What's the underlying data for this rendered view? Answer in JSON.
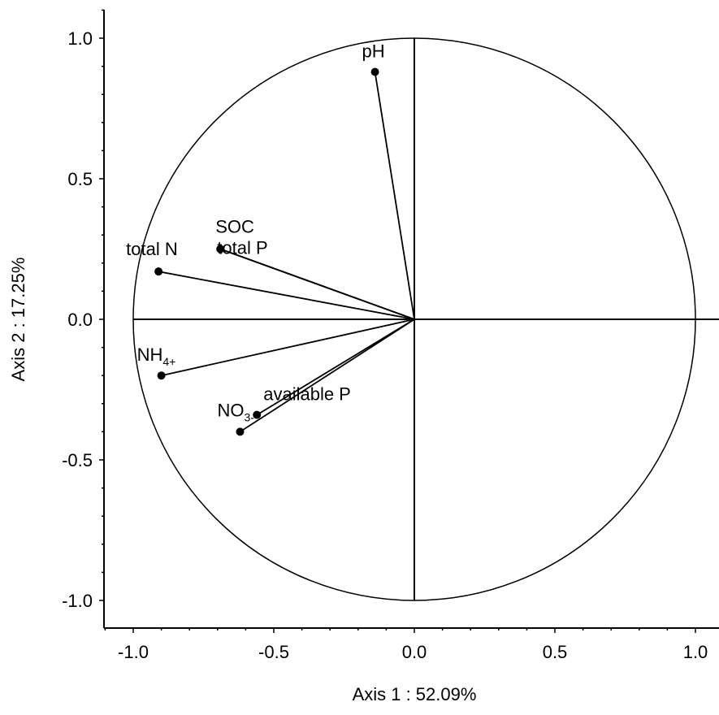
{
  "chart_data": {
    "type": "scatter",
    "subtype": "pca-correlation-circle",
    "title": "",
    "xlabel": "Axis 1 : 52.09%",
    "ylabel": "Axis 2 : 17.25%",
    "xlim": [
      -1.1,
      1.1
    ],
    "ylim": [
      -1.1,
      1.1
    ],
    "xticks": [
      "-1.0",
      "-0.5",
      "0.0",
      "0.5",
      "1.0"
    ],
    "yticks": [
      "1.0",
      "0.5",
      "0.0",
      "-0.5",
      "-1.0"
    ],
    "xtick_values": [
      -1.0,
      -0.5,
      0.0,
      0.5,
      1.0
    ],
    "ytick_values": [
      1.0,
      0.5,
      0.0,
      -0.5,
      -1.0
    ],
    "unit_circle": true,
    "grid": false,
    "points": [
      {
        "label": "pH",
        "x": -0.14,
        "y": 0.88
      },
      {
        "label": "SOC",
        "x": -0.69,
        "y": 0.25
      },
      {
        "label": "total P",
        "x": -0.69,
        "y": 0.25
      },
      {
        "label": "total N",
        "x": -0.91,
        "y": 0.17
      },
      {
        "label": "NH",
        "sub": "4+",
        "x": -0.9,
        "y": -0.2
      },
      {
        "label": "available P",
        "x": -0.56,
        "y": -0.34
      },
      {
        "label": "NO",
        "sub": "3-",
        "x": -0.62,
        "y": -0.4
      }
    ]
  }
}
